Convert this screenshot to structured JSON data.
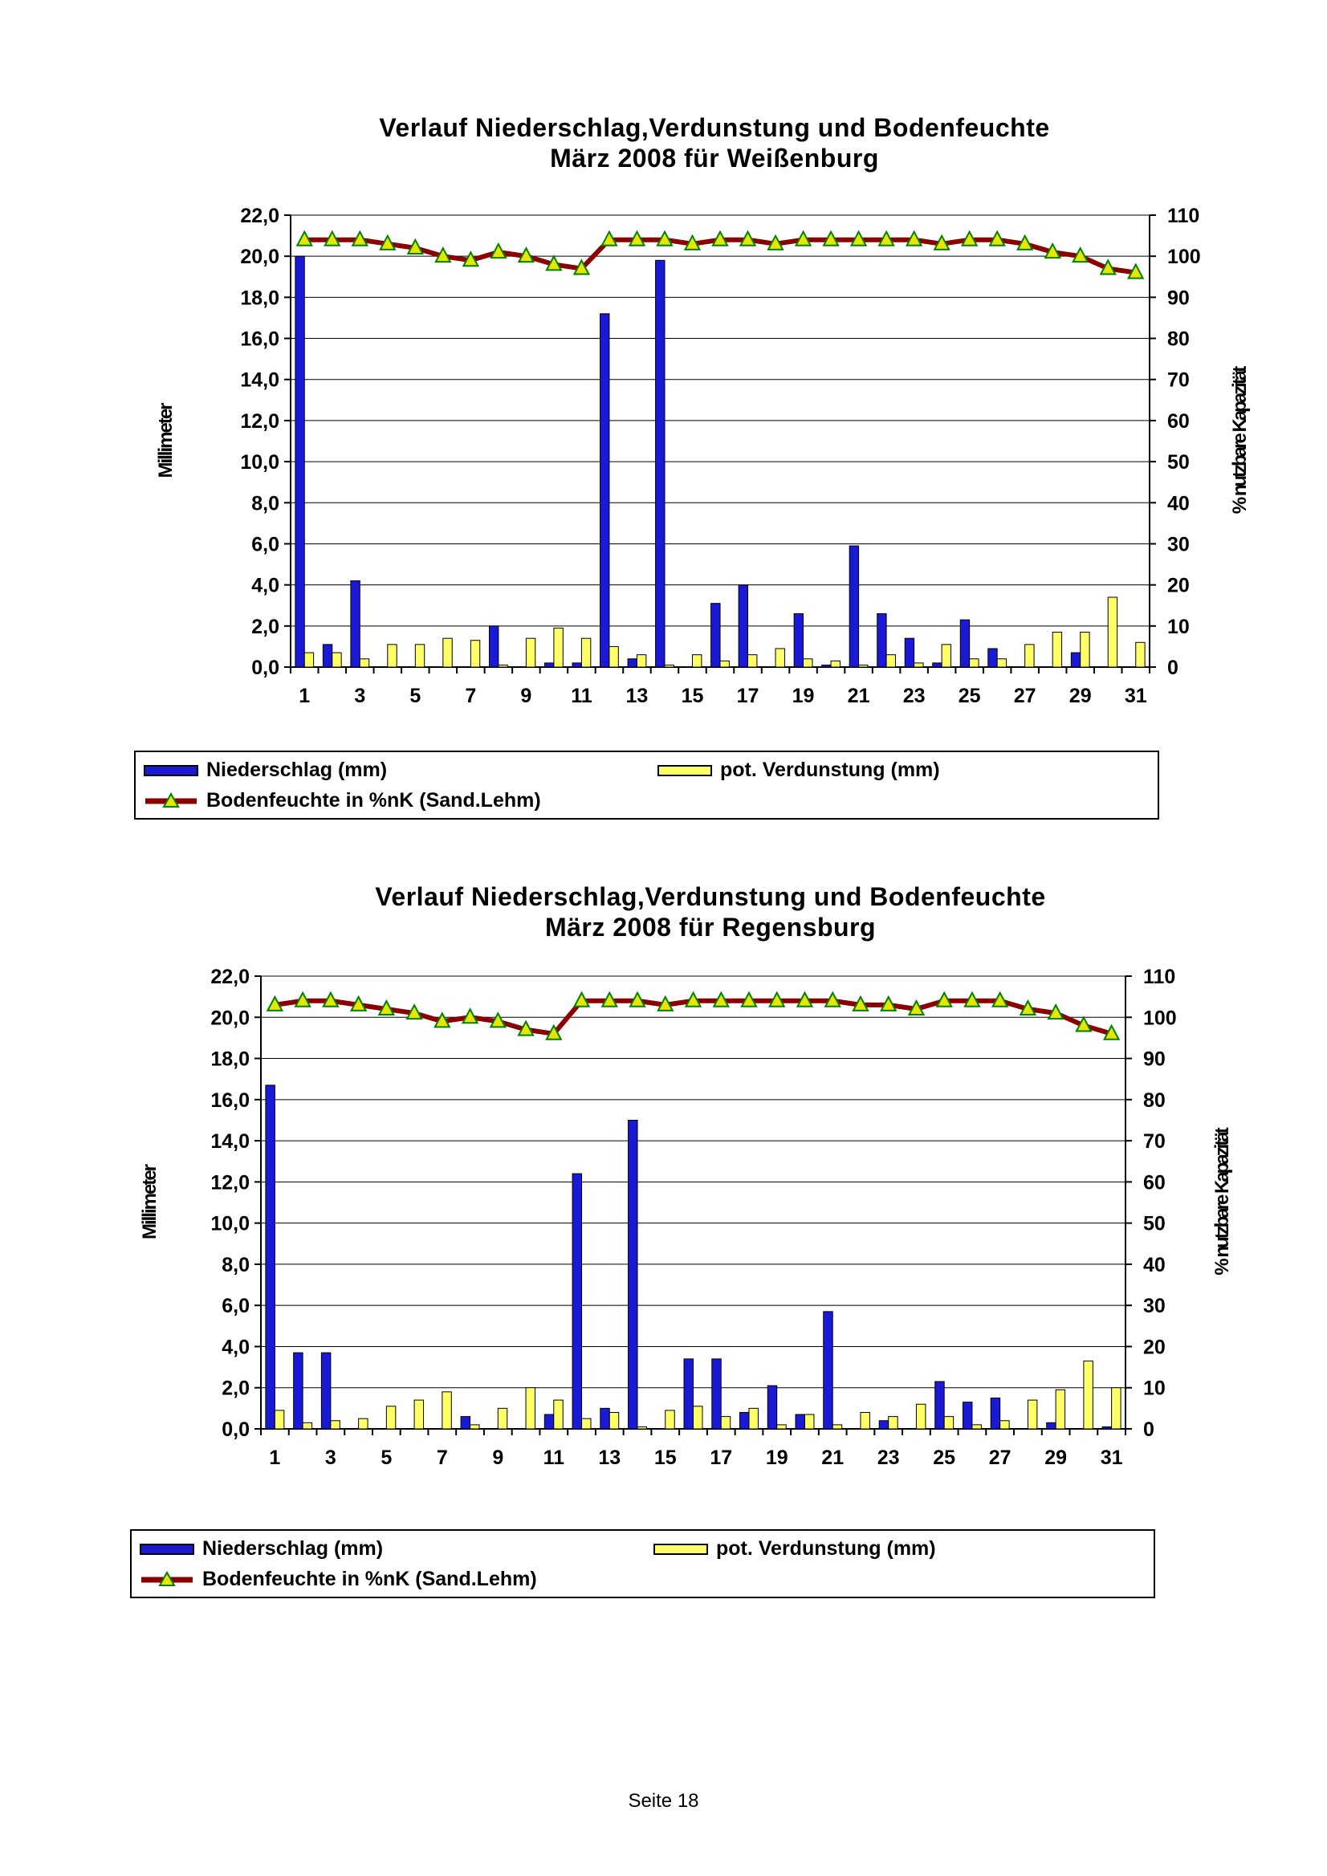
{
  "footer": "Seite 18",
  "colors": {
    "precip": "#1a1ad6",
    "evap": "#ffff66",
    "soil_line": "#8b0000",
    "marker": "#e6e600",
    "marker_edge": "#008000"
  },
  "legend": {
    "precip": "Niederschlag (mm)",
    "evap": "pot. Verdunstung (mm)",
    "soil": "Bodenfeuchte in %nK (Sand.Lehm)"
  },
  "chart_data": [
    {
      "type": "bar",
      "title": "Verlauf Niederschlag,Verdunstung und Bodenfeuchte",
      "subtitle": "März 2008 für Weißenburg",
      "ylabel": "Millimeter",
      "y2label": "% nutzbare Kapazität",
      "ylim": [
        0,
        22
      ],
      "y2lim": [
        0,
        110
      ],
      "yticks": [
        "0,0",
        "2,0",
        "4,0",
        "6,0",
        "8,0",
        "10,0",
        "12,0",
        "14,0",
        "16,0",
        "18,0",
        "20,0",
        "22,0"
      ],
      "y2ticks": [
        "0",
        "10",
        "20",
        "30",
        "40",
        "50",
        "60",
        "70",
        "80",
        "90",
        "100",
        "110"
      ],
      "xticks": [
        "1",
        "3",
        "5",
        "7",
        "9",
        "11",
        "13",
        "15",
        "17",
        "19",
        "21",
        "23",
        "25",
        "27",
        "29",
        "31"
      ],
      "x": [
        1,
        2,
        3,
        4,
        5,
        6,
        7,
        8,
        9,
        10,
        11,
        12,
        13,
        14,
        15,
        16,
        17,
        18,
        19,
        20,
        21,
        22,
        23,
        24,
        25,
        26,
        27,
        28,
        29,
        30,
        31
      ],
      "series": [
        {
          "name": "Niederschlag (mm)",
          "axis": "left",
          "values": [
            20.0,
            1.1,
            4.2,
            0,
            0,
            0,
            0,
            2.0,
            0,
            0.2,
            0.2,
            17.2,
            0.4,
            19.8,
            0,
            3.1,
            4.0,
            0,
            2.6,
            0.1,
            5.9,
            2.6,
            1.4,
            0.2,
            2.3,
            0.9,
            0,
            0,
            0.7,
            0,
            0
          ]
        },
        {
          "name": "pot. Verdunstung (mm)",
          "axis": "left",
          "values": [
            0.7,
            0.7,
            0.4,
            1.1,
            1.1,
            1.4,
            1.3,
            0.1,
            1.4,
            1.9,
            1.4,
            1.0,
            0.6,
            0.1,
            0.6,
            0.3,
            0.6,
            0.9,
            0.4,
            0.3,
            0.1,
            0.6,
            0.2,
            1.1,
            0.4,
            0.4,
            1.1,
            1.7,
            1.7,
            3.4,
            1.2
          ]
        },
        {
          "name": "Bodenfeuchte in %nK (Sand.Lehm)",
          "axis": "right",
          "kind": "line",
          "values": [
            104,
            104,
            104,
            103,
            102,
            100,
            99,
            101,
            100,
            98,
            97,
            104,
            104,
            104,
            103,
            104,
            104,
            103,
            104,
            104,
            104,
            104,
            104,
            103,
            104,
            104,
            103,
            101,
            100,
            97,
            96
          ]
        }
      ]
    },
    {
      "type": "bar",
      "title": "Verlauf Niederschlag,Verdunstung und Bodenfeuchte",
      "subtitle": "März 2008 für Regensburg",
      "ylabel": "Millimeter",
      "y2label": "% nutzbare Kapazität",
      "ylim": [
        0,
        22
      ],
      "y2lim": [
        0,
        110
      ],
      "yticks": [
        "0,0",
        "2,0",
        "4,0",
        "6,0",
        "8,0",
        "10,0",
        "12,0",
        "14,0",
        "16,0",
        "18,0",
        "20,0",
        "22,0"
      ],
      "y2ticks": [
        "0",
        "10",
        "20",
        "30",
        "40",
        "50",
        "60",
        "70",
        "80",
        "90",
        "100",
        "110"
      ],
      "xticks": [
        "1",
        "3",
        "5",
        "7",
        "9",
        "11",
        "13",
        "15",
        "17",
        "19",
        "21",
        "23",
        "25",
        "27",
        "29",
        "31"
      ],
      "x": [
        1,
        2,
        3,
        4,
        5,
        6,
        7,
        8,
        9,
        10,
        11,
        12,
        13,
        14,
        15,
        16,
        17,
        18,
        19,
        20,
        21,
        22,
        23,
        24,
        25,
        26,
        27,
        28,
        29,
        30,
        31
      ],
      "series": [
        {
          "name": "Niederschlag (mm)",
          "axis": "left",
          "values": [
            16.7,
            3.7,
            3.7,
            0,
            0,
            0,
            0,
            0.6,
            0,
            0,
            0.7,
            12.4,
            1.0,
            15.0,
            0,
            3.4,
            3.4,
            0.8,
            2.1,
            0.7,
            5.7,
            0,
            0.4,
            0,
            2.3,
            1.3,
            1.5,
            0,
            0.3,
            0,
            0.1
          ]
        },
        {
          "name": "pot. Verdunstung (mm)",
          "axis": "left",
          "values": [
            0.9,
            0.3,
            0.4,
            0.5,
            1.1,
            1.4,
            1.8,
            0.2,
            1.0,
            2.0,
            1.4,
            0.5,
            0.8,
            0.1,
            0.9,
            1.1,
            0.6,
            1.0,
            0.2,
            0.7,
            0.2,
            0.8,
            0.6,
            1.2,
            0.6,
            0.2,
            0.4,
            1.4,
            1.9,
            3.3,
            2.0
          ]
        },
        {
          "name": "Bodenfeuchte in %nK (Sand.Lehm)",
          "axis": "right",
          "kind": "line",
          "values": [
            103,
            104,
            104,
            103,
            102,
            101,
            99,
            100,
            99,
            97,
            96,
            104,
            104,
            104,
            103,
            104,
            104,
            104,
            104,
            104,
            104,
            103,
            103,
            102,
            104,
            104,
            104,
            102,
            101,
            98,
            96
          ]
        }
      ]
    }
  ]
}
